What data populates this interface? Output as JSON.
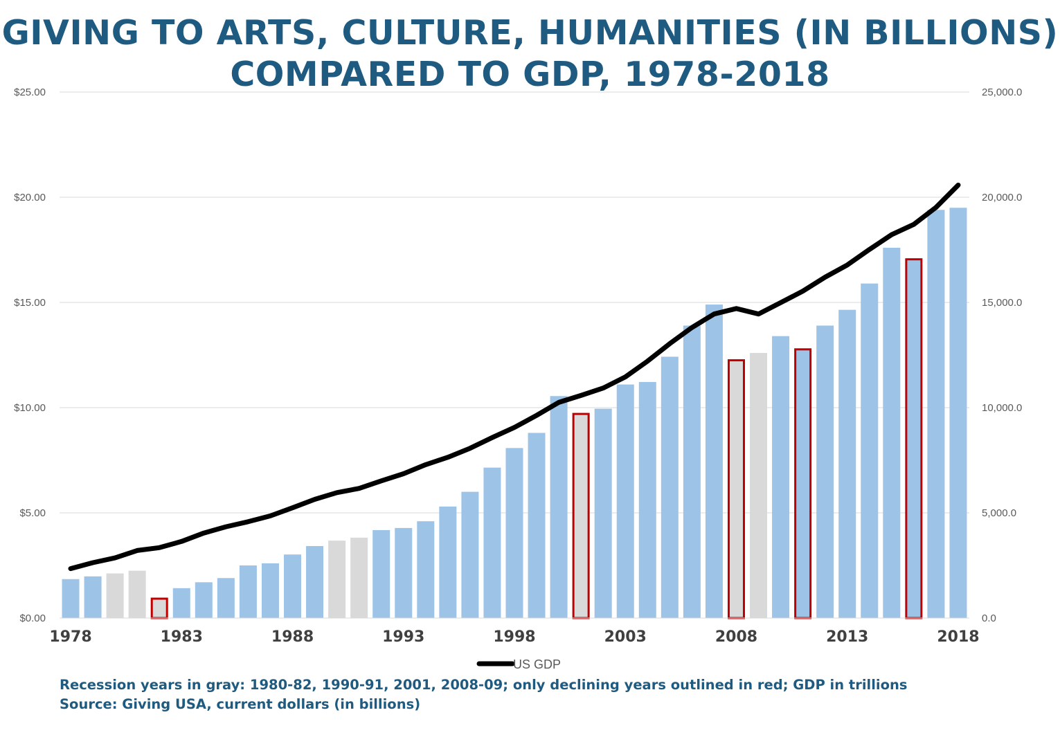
{
  "title": {
    "line1": "GIVING TO ARTS, CULTURE, HUMANITIES (IN BILLIONS)",
    "line2": "COMPARED TO GDP, 1978-2018"
  },
  "notes": {
    "line1": "Recession years in gray: 1980-82, 1990-91, 2001, 2008-09; only declining years outlined in red; GDP in trillions",
    "line2": "Source: Giving USA, current dollars (in billions)"
  },
  "colors": {
    "bar": "#9dc3e6",
    "recession_bar": "#d9d9d9",
    "decline_outline": "#c00000",
    "gdp_line": "#000000",
    "grid": "#d9d9d9",
    "title": "#1f5a80"
  },
  "chart_data": {
    "type": "bar",
    "years": [
      1978,
      1979,
      1980,
      1981,
      1982,
      1983,
      1984,
      1985,
      1986,
      1987,
      1988,
      1989,
      1990,
      1991,
      1992,
      1993,
      1994,
      1995,
      1996,
      1997,
      1998,
      1999,
      2000,
      2001,
      2002,
      2003,
      2004,
      2005,
      2006,
      2007,
      2008,
      2009,
      2010,
      2011,
      2012,
      2013,
      2014,
      2015,
      2016,
      2017,
      2018
    ],
    "giving": [
      1.85,
      1.98,
      2.12,
      2.25,
      0.97,
      1.42,
      1.7,
      1.9,
      2.5,
      2.6,
      3.02,
      3.42,
      3.68,
      3.82,
      4.18,
      4.28,
      4.6,
      5.3,
      6.0,
      7.15,
      8.08,
      8.8,
      10.55,
      9.75,
      9.95,
      11.1,
      11.22,
      12.42,
      13.9,
      14.9,
      12.3,
      12.6,
      13.4,
      12.82,
      13.9,
      14.65,
      15.9,
      17.6,
      17.1,
      19.4,
      19.5
    ],
    "recession_years": [
      1980,
      1981,
      1982,
      1990,
      1991,
      2001,
      2008,
      2009
    ],
    "declining_years": [
      1982,
      2001,
      2008,
      2011,
      2016
    ],
    "gdp_series": {
      "name": "US GDP",
      "values": [
        2350,
        2630,
        2860,
        3210,
        3345,
        3640,
        4040,
        4340,
        4580,
        4855,
        5240,
        5640,
        5960,
        6160,
        6520,
        6860,
        7290,
        7640,
        8070,
        8580,
        9060,
        9630,
        10250,
        10580,
        10930,
        11460,
        12210,
        13040,
        13810,
        14450,
        14710,
        14450,
        14990,
        15540,
        16200,
        16780,
        17520,
        18220,
        18710,
        19520,
        20580
      ]
    },
    "y_left": {
      "min": 0,
      "max": 25,
      "ticks": [
        "$0.00",
        "$5.00",
        "$10.00",
        "$15.00",
        "$20.00",
        "$25.00"
      ]
    },
    "y_right": {
      "min": 0,
      "max": 25000,
      "ticks": [
        "0.0",
        "5,000.0",
        "10,000.0",
        "15,000.0",
        "20,000.0",
        "25,000.0"
      ]
    },
    "x_tick_labels": [
      "1978",
      "1983",
      "1988",
      "1993",
      "1998",
      "2003",
      "2008",
      "2013",
      "2018"
    ],
    "grid": true,
    "legend_position": "bottom"
  }
}
